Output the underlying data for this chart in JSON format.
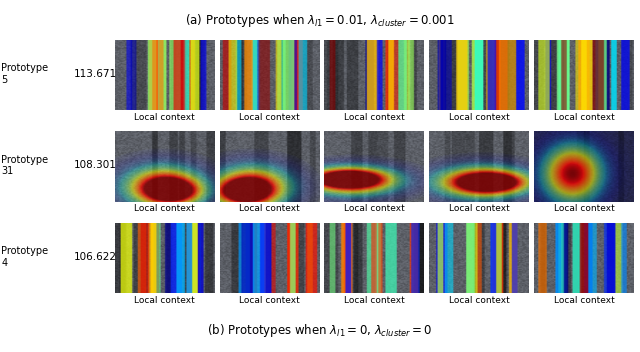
{
  "title_top": "(a) Prototypes when $\\lambda_{l1} = 0.01$, $\\lambda_{cluster} = 0.001$",
  "title_bottom": "(b) Prototypes when $\\lambda_{l1} = 0$, $\\lambda_{cluster} = 0$",
  "rows": [
    {
      "prototype_label": "Prototype\n5",
      "score": "113.671"
    },
    {
      "prototype_label": "Prototype\n31",
      "score": "108.301"
    },
    {
      "prototype_label": "Prototype\n4",
      "score": "106.622"
    }
  ],
  "n_cols": 5,
  "col_label": "Local context",
  "background_color": "#ffffff",
  "text_color": "#000000",
  "label_fontsize": 6.5,
  "title_fontsize": 8.5,
  "score_fontsize": 7.5,
  "proto_label_fontsize": 7.0
}
